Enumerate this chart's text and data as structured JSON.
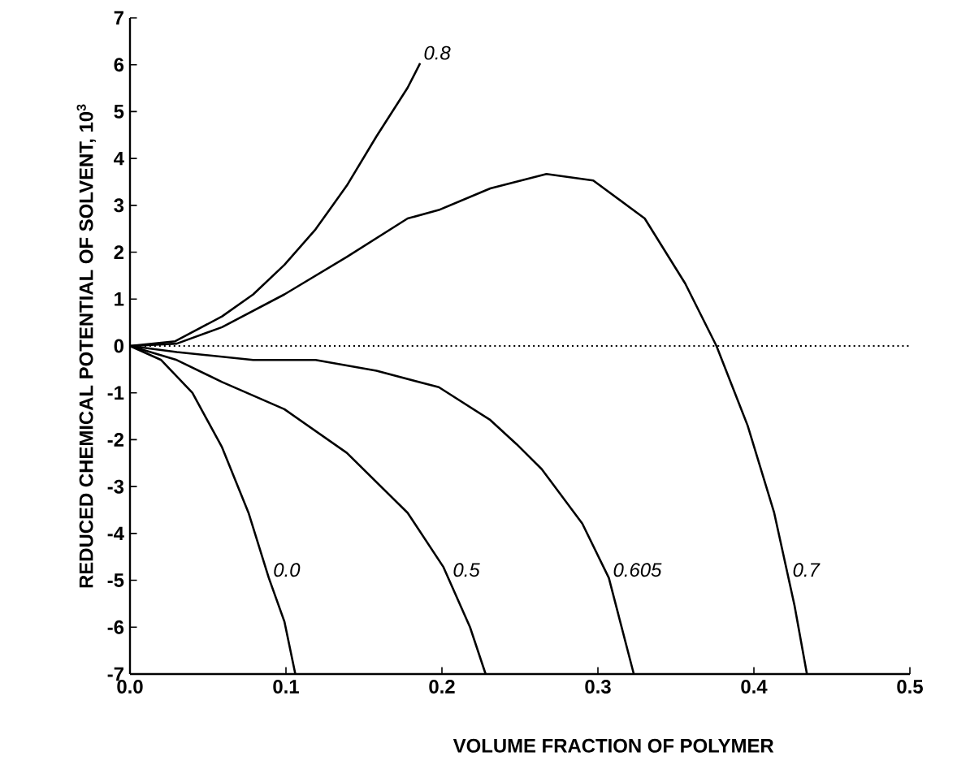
{
  "chart_data": {
    "type": "line",
    "xlabel": "VOLUME FRACTION OF POLYMER",
    "ylabel": "REDUCED CHEMICAL POTENTIAL OF SOLVENT, 10$^{3}$",
    "xlim": [
      0,
      0.5
    ],
    "ylim": [
      -7,
      7
    ],
    "xticks": [
      {
        "value": 0,
        "label": "0.0"
      },
      0.1,
      0.2,
      0.3,
      0.4,
      0.5
    ],
    "yticks": [
      -7,
      -6,
      -5,
      -4,
      -3,
      -2,
      -1,
      0,
      1,
      2,
      3,
      4,
      5,
      6,
      7
    ],
    "grid": false,
    "legend": false,
    "marker": "none",
    "line_style": "solid",
    "ref_lines": [
      {
        "axis": "y",
        "value": 0,
        "line_style": "dotted",
        "color": "#000000"
      }
    ],
    "series": [
      {
        "name": "0.8",
        "color": "#000000",
        "x": [
          0,
          0.029,
          0.059,
          0.079,
          0.099,
          0.119,
          0.139,
          0.158,
          0.178,
          0.186
        ],
        "values": [
          0,
          0.1,
          0.63,
          1.1,
          1.73,
          2.49,
          3.42,
          4.47,
          5.51,
          6.03
        ]
      },
      {
        "name": "0.7",
        "color": "#000000",
        "x": [
          0,
          0.03,
          0.059,
          0.099,
          0.139,
          0.178,
          0.198,
          0.231,
          0.267,
          0.297,
          0.33,
          0.356,
          0.376,
          0.396,
          0.413,
          0.426,
          0.434
        ],
        "values": [
          0,
          0.05,
          0.4,
          1.1,
          1.9,
          2.72,
          2.9,
          3.36,
          3.67,
          3.53,
          2.72,
          1.33,
          0,
          -1.7,
          -3.56,
          -5.53,
          -7
        ]
      },
      {
        "name": "0.605",
        "color": "#000000",
        "x": [
          0,
          0.03,
          0.079,
          0.119,
          0.158,
          0.198,
          0.231,
          0.248,
          0.264,
          0.29,
          0.307,
          0.323
        ],
        "values": [
          0,
          -0.13,
          -0.3,
          -0.3,
          -0.53,
          -0.88,
          -1.58,
          -2.1,
          -2.63,
          -3.79,
          -4.95,
          -7
        ]
      },
      {
        "name": "0.5",
        "color": "#000000",
        "x": [
          0,
          0.03,
          0.059,
          0.099,
          0.139,
          0.178,
          0.201,
          0.218,
          0.228
        ],
        "values": [
          0,
          -0.3,
          -0.77,
          -1.35,
          -2.28,
          -3.56,
          -4.72,
          -6.0,
          -7
        ]
      },
      {
        "name": "0.0",
        "color": "#000000",
        "x": [
          0,
          0.02,
          0.04,
          0.059,
          0.076,
          0.089,
          0.099,
          0.106
        ],
        "values": [
          0,
          -0.3,
          -1.0,
          -2.16,
          -3.56,
          -4.95,
          -5.88,
          -7
        ]
      }
    ]
  }
}
